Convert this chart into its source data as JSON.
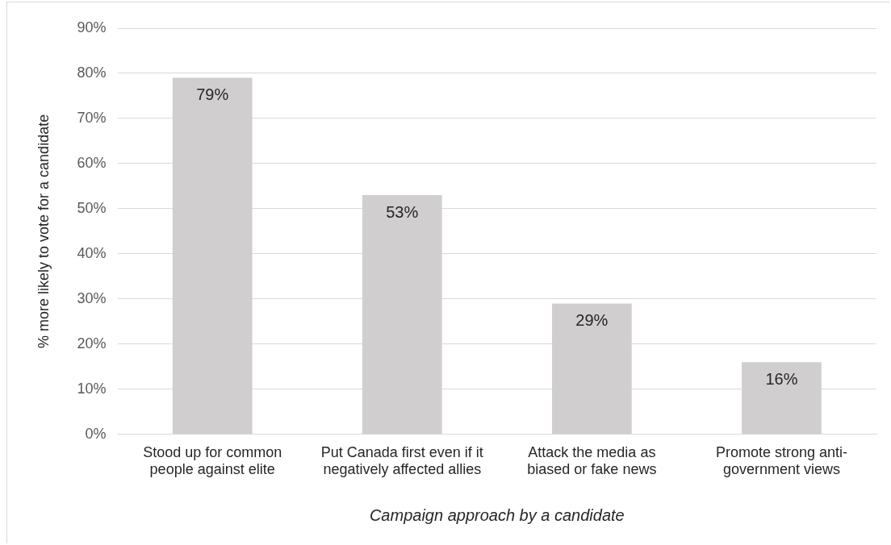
{
  "chart_data": {
    "type": "bar",
    "xlabel": "Campaign approach by a candidate",
    "ylabel": "% more likely to vote for a candidate",
    "categories": [
      "Stood up for common people against elite",
      "Put Canada first even if it negatively affected allies",
      "Attack the media as biased or fake news",
      "Promote strong anti-government views"
    ],
    "values": [
      79,
      53,
      29,
      16
    ],
    "color": "#d0cece",
    "value_labels": [
      "79%",
      "53%",
      "29%",
      "16%"
    ],
    "ylim": [
      0,
      90
    ],
    "yticks": [
      {
        "value": 0,
        "label": "0%"
      },
      {
        "value": 10,
        "label": "10%"
      },
      {
        "value": 20,
        "label": "20%"
      },
      {
        "value": 30,
        "label": "30%"
      },
      {
        "value": 40,
        "label": "40%"
      },
      {
        "value": 50,
        "label": "50%"
      },
      {
        "value": 60,
        "label": "60%"
      },
      {
        "value": 70,
        "label": "70%"
      },
      {
        "value": 80,
        "label": "80%"
      },
      {
        "value": 90,
        "label": "90%"
      }
    ],
    "grid": "y",
    "legend": false
  }
}
